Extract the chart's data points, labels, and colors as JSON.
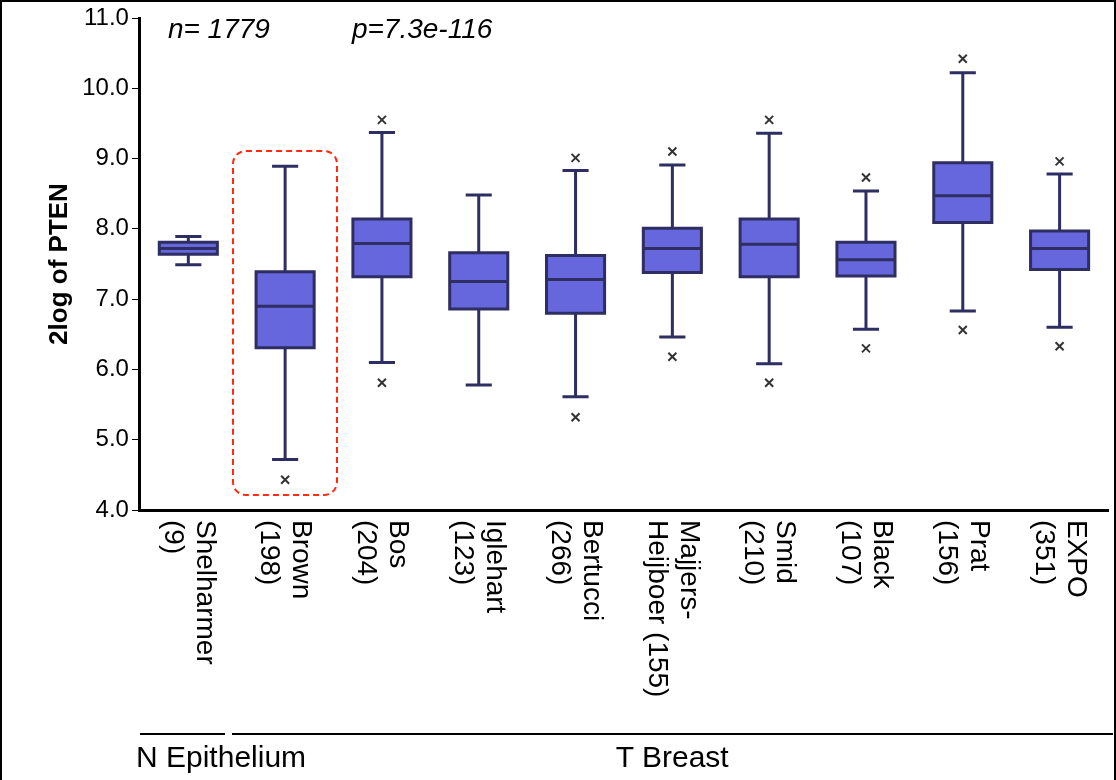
{
  "chart_data": {
    "type": "box",
    "ylabel": "2log of PTEN",
    "categories": [
      "Shelharmer (9)",
      "Brown (198)",
      "Bos (204)",
      "Iglehart (123)",
      "Bertucci (266)",
      "Majjers-Heijboer (155)",
      "Smid (210)",
      "Black (107)",
      "Prat (156)",
      "EXPO (351)"
    ],
    "series": [
      {
        "color": "#6666dd",
        "boxes": [
          {
            "low": 7.49,
            "q1": 7.64,
            "median": 7.72,
            "q3": 7.81,
            "high": 7.89
          },
          {
            "low": 4.72,
            "q1": 6.31,
            "median": 6.9,
            "q3": 7.39,
            "high": 8.89,
            "outliers": [
              4.43
            ]
          },
          {
            "low": 6.1,
            "q1": 7.32,
            "median": 7.79,
            "q3": 8.14,
            "high": 9.37,
            "outliers": [
              9.55,
              5.81
            ]
          },
          {
            "low": 5.78,
            "q1": 6.86,
            "median": 7.25,
            "q3": 7.66,
            "high": 8.48
          },
          {
            "low": 5.61,
            "q1": 6.8,
            "median": 7.28,
            "q3": 7.62,
            "high": 8.83,
            "outliers": [
              9.01,
              5.32
            ]
          },
          {
            "low": 6.46,
            "q1": 7.38,
            "median": 7.72,
            "q3": 8.01,
            "high": 8.91,
            "outliers": [
              9.1,
              6.18
            ]
          },
          {
            "low": 6.08,
            "q1": 7.32,
            "median": 7.78,
            "q3": 8.14,
            "high": 9.36,
            "outliers": [
              9.55,
              5.81
            ]
          },
          {
            "low": 6.57,
            "q1": 7.33,
            "median": 7.56,
            "q3": 7.81,
            "high": 8.54,
            "outliers": [
              8.73,
              6.3
            ]
          },
          {
            "low": 6.83,
            "q1": 8.09,
            "median": 8.47,
            "q3": 8.94,
            "high": 10.22,
            "outliers": [
              10.42,
              6.56
            ]
          },
          {
            "low": 6.6,
            "q1": 7.42,
            "median": 7.72,
            "q3": 7.97,
            "high": 8.78,
            "outliers": [
              8.96,
              6.33
            ]
          }
        ]
      }
    ],
    "ylim": [
      4,
      11
    ],
    "yticks": [
      {
        "value": 4,
        "label": "4.0"
      },
      {
        "value": 5,
        "label": "5.0"
      },
      {
        "value": 6,
        "label": "6.0"
      },
      {
        "value": 7,
        "label": "7.0"
      },
      {
        "value": 8,
        "label": "8.0"
      },
      {
        "value": 9,
        "label": "9.0"
      },
      {
        "value": 10,
        "label": "10.0"
      },
      {
        "value": 11,
        "label": "11.0"
      }
    ],
    "grid": false,
    "legend": false,
    "marker": "cross",
    "annotations": [
      "n= 1779",
      "p=7.3e-116",
      "N Epithelium",
      "T Breast"
    ]
  }
}
